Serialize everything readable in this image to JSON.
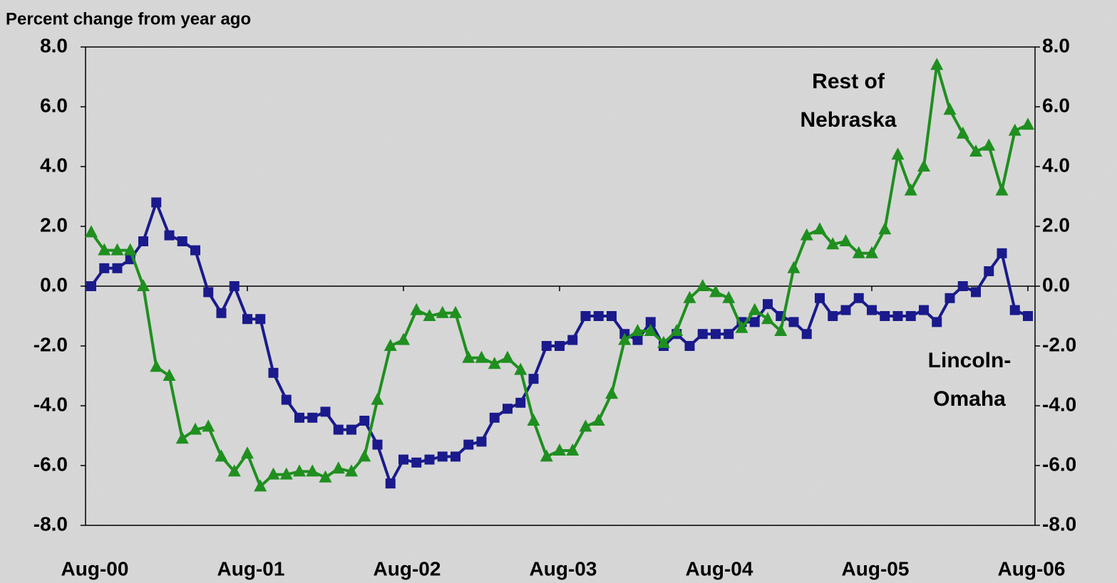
{
  "chart_data": {
    "type": "line",
    "ylabel": "Percent change from year ago",
    "categories": [
      "Aug-00",
      null,
      null,
      null,
      null,
      null,
      null,
      null,
      null,
      null,
      null,
      null,
      "Aug-01",
      null,
      null,
      null,
      null,
      null,
      null,
      null,
      null,
      null,
      null,
      null,
      "Aug-02",
      null,
      null,
      null,
      null,
      null,
      null,
      null,
      null,
      null,
      null,
      null,
      "Aug-03",
      null,
      null,
      null,
      null,
      null,
      null,
      null,
      null,
      null,
      null,
      null,
      "Aug-04",
      null,
      null,
      null,
      null,
      null,
      null,
      null,
      null,
      null,
      null,
      null,
      "Aug-05",
      null,
      null,
      null,
      null,
      null,
      null,
      null,
      null,
      null,
      null,
      null,
      "Aug-06"
    ],
    "series": [
      {
        "name": "Lincoln-Omaha",
        "color": "#1a1a8c",
        "marker": "square",
        "values": [
          0.0,
          0.6,
          0.6,
          0.9,
          1.5,
          2.8,
          1.7,
          1.5,
          1.2,
          -0.2,
          -0.9,
          0.0,
          -1.1,
          -1.1,
          -2.9,
          -3.8,
          -4.4,
          -4.4,
          -4.2,
          -4.8,
          -4.8,
          -4.5,
          -5.3,
          -6.6,
          -5.8,
          -5.9,
          -5.8,
          -5.7,
          -5.7,
          -5.3,
          -5.2,
          -4.4,
          -4.1,
          -3.9,
          -3.1,
          -2.0,
          -2.0,
          -1.8,
          -1.0,
          -1.0,
          -1.0,
          -1.6,
          -1.8,
          -1.2,
          -2.0,
          -1.6,
          -2.0,
          -1.6,
          -1.6,
          -1.6,
          -1.2,
          -1.2,
          -0.6,
          -1.0,
          -1.2,
          -1.6,
          -0.4,
          -1.0,
          -0.8,
          -0.4,
          -0.8,
          -1.0,
          -1.0,
          -1.0,
          -0.8,
          -1.2,
          -0.4,
          0.0,
          -0.2,
          0.5,
          1.1,
          -0.8,
          -1.0
        ]
      },
      {
        "name": "Rest of Nebraska",
        "color": "#1f8f1f",
        "marker": "triangle",
        "values": [
          1.8,
          1.2,
          1.2,
          1.2,
          0.0,
          -2.7,
          -3.0,
          -5.1,
          -4.8,
          -4.7,
          -5.7,
          -6.2,
          -5.6,
          -6.7,
          -6.3,
          -6.3,
          -6.2,
          -6.2,
          -6.4,
          -6.1,
          -6.2,
          -5.7,
          -3.8,
          -2.0,
          -1.8,
          -0.8,
          -1.0,
          -0.9,
          -0.9,
          -2.4,
          -2.4,
          -2.6,
          -2.4,
          -2.8,
          -4.5,
          -5.7,
          -5.5,
          -5.5,
          -4.7,
          -4.5,
          -3.6,
          -1.8,
          -1.5,
          -1.5,
          -1.9,
          -1.5,
          -0.4,
          0.0,
          -0.2,
          -0.4,
          -1.4,
          -0.8,
          -1.1,
          -1.5,
          0.6,
          1.7,
          1.9,
          1.4,
          1.5,
          1.1,
          1.1,
          1.9,
          4.4,
          3.2,
          4.0,
          7.4,
          5.9,
          5.1,
          4.5,
          4.7,
          3.2,
          5.2,
          5.4
        ]
      }
    ],
    "annotations": [
      {
        "lines": [
          "Rest of",
          "Nebraska"
        ]
      },
      {
        "lines": [
          "Lincoln-",
          "Omaha"
        ]
      }
    ],
    "ylim": [
      -8,
      8
    ],
    "yticks": [
      {
        "value": -8,
        "label": "-8.0"
      },
      {
        "value": -6,
        "label": "-6.0"
      },
      {
        "value": -4,
        "label": "-4.0"
      },
      {
        "value": -2,
        "label": "-2.0"
      },
      {
        "value": 0,
        "label": "0.0"
      },
      {
        "value": 2,
        "label": "2.0"
      },
      {
        "value": 4,
        "label": "4.0"
      },
      {
        "value": 6,
        "label": "6.0"
      },
      {
        "value": 8,
        "label": "8.0"
      }
    ],
    "y2lim": [
      -8,
      8
    ],
    "y2ticks": [
      {
        "value": -8,
        "label": "-8.0"
      },
      {
        "value": -6,
        "label": "-6.0"
      },
      {
        "value": -4,
        "label": "-4.0"
      },
      {
        "value": -2,
        "label": "-2.0"
      },
      {
        "value": 0,
        "label": "0.0"
      },
      {
        "value": 2,
        "label": "2.0"
      },
      {
        "value": 4,
        "label": "4.0"
      },
      {
        "value": 6,
        "label": "6.0"
      },
      {
        "value": 8,
        "label": "8.0"
      }
    ]
  }
}
